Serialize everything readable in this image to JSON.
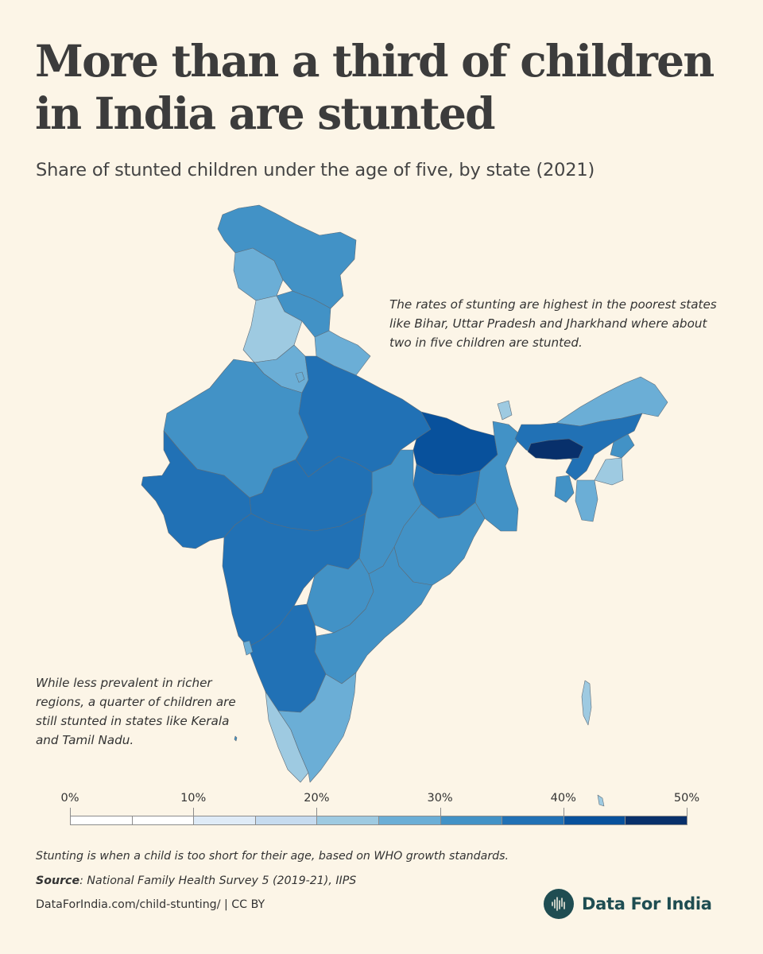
{
  "header": {
    "title": "More than a third of children in India are stunted",
    "subtitle": "Share of stunted children under the age of five, by state (2021)"
  },
  "annotations": {
    "north": "The rates of stunting are highest in the poorest states like Bihar, Uttar Pradesh and Jharkhand where about two in five children are stunted.",
    "south": "While less prevalent in richer regions, a quarter of children are still stunted in states like Kerala and Tamil Nadu."
  },
  "legend": {
    "ticks": [
      "0%",
      "10%",
      "20%",
      "30%",
      "40%",
      "50%"
    ],
    "bins": [
      {
        "from": 0,
        "to": 5,
        "color": "#ffffff"
      },
      {
        "from": 5,
        "to": 10,
        "color": "#ffffff"
      },
      {
        "from": 10,
        "to": 15,
        "color": "#dfebf7"
      },
      {
        "from": 15,
        "to": 20,
        "color": "#c6dbef"
      },
      {
        "from": 20,
        "to": 25,
        "color": "#9ecae1"
      },
      {
        "from": 25,
        "to": 30,
        "color": "#6baed6"
      },
      {
        "from": 30,
        "to": 35,
        "color": "#4292c6"
      },
      {
        "from": 35,
        "to": 40,
        "color": "#2171b5"
      },
      {
        "from": 40,
        "to": 45,
        "color": "#08519c"
      },
      {
        "from": 45,
        "to": 50,
        "color": "#08306b"
      }
    ]
  },
  "chart_data": {
    "type": "choropleth",
    "title": "More than a third of children in India are stunted",
    "subtitle": "Share of stunted children under the age of five, by state (2021)",
    "unit": "%",
    "range": [
      0,
      50
    ],
    "bin_size": 5,
    "regions": [
      {
        "name": "Jammu & Kashmir",
        "bin": [
          25,
          30
        ]
      },
      {
        "name": "Ladakh",
        "bin": [
          30,
          35
        ]
      },
      {
        "name": "Himachal Pradesh",
        "bin": [
          30,
          35
        ]
      },
      {
        "name": "Punjab",
        "bin": [
          20,
          25
        ]
      },
      {
        "name": "Uttarakhand",
        "bin": [
          25,
          30
        ]
      },
      {
        "name": "Haryana",
        "bin": [
          25,
          30
        ]
      },
      {
        "name": "Delhi",
        "bin": [
          25,
          30
        ]
      },
      {
        "name": "Rajasthan",
        "bin": [
          30,
          35
        ]
      },
      {
        "name": "Uttar Pradesh",
        "bin": [
          35,
          40
        ]
      },
      {
        "name": "Bihar",
        "bin": [
          40,
          45
        ]
      },
      {
        "name": "Sikkim",
        "bin": [
          20,
          25
        ]
      },
      {
        "name": "Arunachal Pradesh",
        "bin": [
          25,
          30
        ]
      },
      {
        "name": "Assam",
        "bin": [
          35,
          40
        ]
      },
      {
        "name": "Meghalaya",
        "bin": [
          45,
          50
        ]
      },
      {
        "name": "Nagaland",
        "bin": [
          30,
          35
        ]
      },
      {
        "name": "Manipur",
        "bin": [
          20,
          25
        ]
      },
      {
        "name": "Mizoram",
        "bin": [
          25,
          30
        ]
      },
      {
        "name": "Tripura",
        "bin": [
          30,
          35
        ]
      },
      {
        "name": "West Bengal",
        "bin": [
          30,
          35
        ]
      },
      {
        "name": "Jharkhand",
        "bin": [
          35,
          40
        ]
      },
      {
        "name": "Odisha",
        "bin": [
          30,
          35
        ]
      },
      {
        "name": "Chhattisgarh",
        "bin": [
          30,
          35
        ]
      },
      {
        "name": "Madhya Pradesh",
        "bin": [
          35,
          40
        ]
      },
      {
        "name": "Gujarat",
        "bin": [
          35,
          40
        ]
      },
      {
        "name": "Maharashtra",
        "bin": [
          35,
          40
        ]
      },
      {
        "name": "Telangana",
        "bin": [
          30,
          35
        ]
      },
      {
        "name": "Andhra Pradesh",
        "bin": [
          30,
          35
        ]
      },
      {
        "name": "Karnataka",
        "bin": [
          35,
          40
        ]
      },
      {
        "name": "Goa",
        "bin": [
          25,
          30
        ]
      },
      {
        "name": "Kerala",
        "bin": [
          20,
          25
        ]
      },
      {
        "name": "Tamil Nadu",
        "bin": [
          25,
          30
        ]
      },
      {
        "name": "Andaman & Nicobar Islands",
        "bin": [
          20,
          25
        ]
      },
      {
        "name": "Lakshadweep",
        "bin": [
          30,
          35
        ]
      }
    ]
  },
  "footer": {
    "note": "Stunting is when a child is too short for their age, based on WHO growth standards.",
    "source_label": "Source",
    "source_text": ": National Family Health Survey 5 (2019-21), IIPS",
    "link_text": "DataForIndia.com/child-stunting/  |  CC BY",
    "brand": "Data For India"
  }
}
